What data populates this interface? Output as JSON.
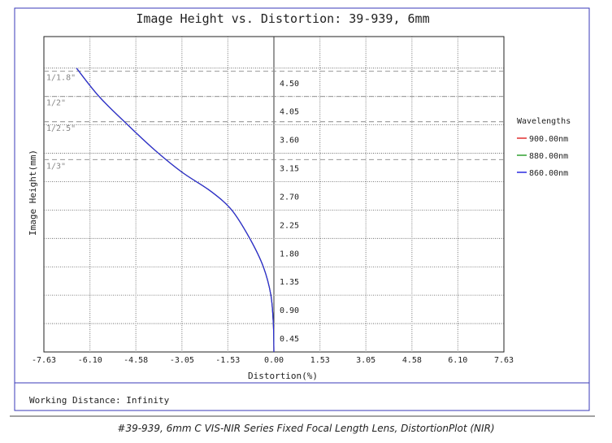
{
  "chart_data": {
    "type": "line",
    "title": "Image Height vs. Distortion: 39-939, 6mm",
    "xlabel": "Distortion(%)",
    "ylabel": "Image Height(mm)",
    "xlim": [
      -7.63,
      7.63
    ],
    "ylim": [
      0,
      5.0
    ],
    "x_ticks": [
      -7.63,
      -6.1,
      -4.58,
      -3.05,
      -1.53,
      0.0,
      1.53,
      3.05,
      4.58,
      6.1,
      7.63
    ],
    "x_tick_labels": [
      "-7.63",
      "-6.10",
      "-4.58",
      "-3.05",
      "-1.53",
      "0.00",
      "1.53",
      "3.05",
      "4.58",
      "6.10",
      "7.63"
    ],
    "y_ticks": [
      0.45,
      0.9,
      1.35,
      1.8,
      2.25,
      2.7,
      3.15,
      3.6,
      4.05,
      4.5
    ],
    "y_tick_labels": [
      "0.45",
      "0.90",
      "1.35",
      "1.80",
      "2.25",
      "2.70",
      "3.15",
      "3.60",
      "4.05",
      "4.50"
    ],
    "grid": true,
    "legend_title": "Wavelengths",
    "legend_position": "right",
    "series": [
      {
        "name": "900.00nm",
        "color": "#e03030",
        "x": [
          0.0,
          -0.02,
          -0.1,
          -0.35,
          -0.8,
          -1.4,
          -2.1,
          -3.05,
          -3.95,
          -4.85,
          -5.8,
          -6.55
        ],
        "y": [
          0.0,
          0.45,
          0.9,
          1.35,
          1.8,
          2.25,
          2.55,
          2.85,
          3.2,
          3.6,
          4.05,
          4.5
        ]
      },
      {
        "name": "880.00nm",
        "color": "#30a030",
        "x": [
          0.0,
          -0.02,
          -0.1,
          -0.35,
          -0.8,
          -1.4,
          -2.1,
          -3.05,
          -3.95,
          -4.85,
          -5.8,
          -6.55
        ],
        "y": [
          0.0,
          0.45,
          0.9,
          1.35,
          1.8,
          2.25,
          2.55,
          2.85,
          3.2,
          3.6,
          4.05,
          4.5
        ]
      },
      {
        "name": "860.00nm",
        "color": "#2a2ae0",
        "x": [
          0.0,
          -0.02,
          -0.1,
          -0.35,
          -0.8,
          -1.4,
          -2.1,
          -3.05,
          -3.95,
          -4.85,
          -5.8,
          -6.55
        ],
        "y": [
          0.0,
          0.45,
          0.9,
          1.35,
          1.8,
          2.25,
          2.55,
          2.85,
          3.2,
          3.6,
          4.05,
          4.5
        ]
      }
    ],
    "sensor_markers": [
      {
        "label": "1/1.8\"",
        "y": 4.45
      },
      {
        "label": "1/2\"",
        "y": 4.05
      },
      {
        "label": "1/2.5\"",
        "y": 3.65
      },
      {
        "label": "1/3\"",
        "y": 3.05
      }
    ]
  },
  "footer": {
    "working_distance": "Working Distance: Infinity"
  },
  "caption": "#39-939, 6mm C VIS-NIR Series Fixed Focal Length Lens, DistortionPlot (NIR)"
}
